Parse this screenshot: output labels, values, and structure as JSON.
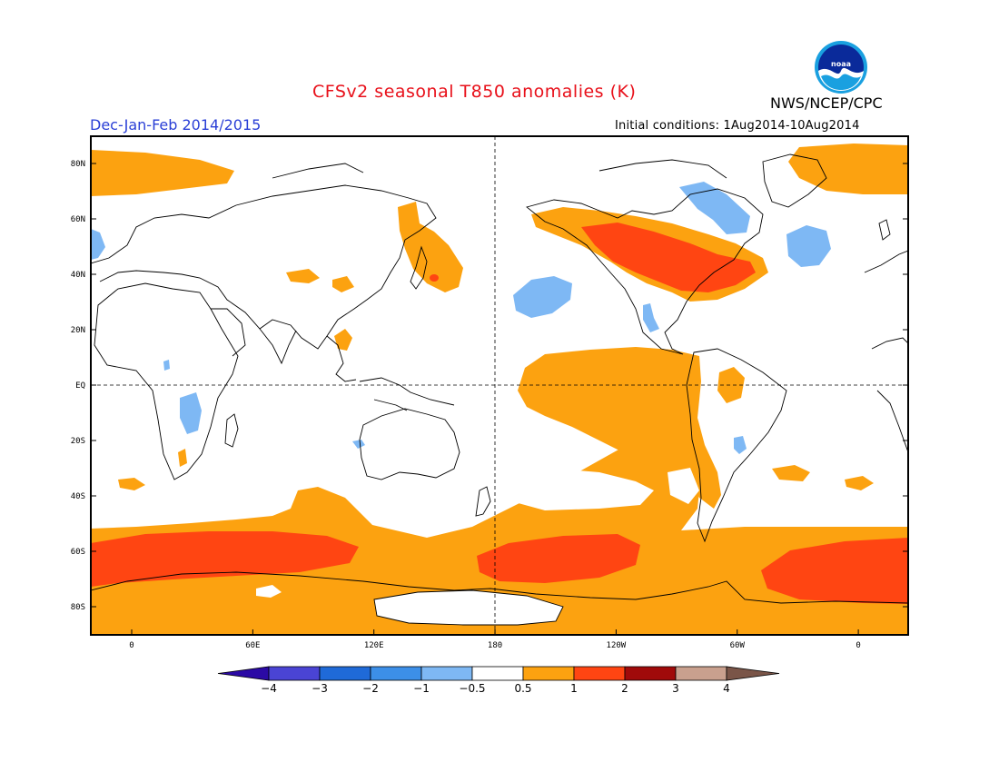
{
  "header": {
    "title": "CFSv2 seasonal T850 anomalies (K)",
    "season": "Dec-Jan-Feb 2014/2015",
    "organization": "NWS/NCEP/CPC",
    "initial_conditions": "Initial conditions: 1Aug2014-10Aug2014",
    "logo_text": "noaa"
  },
  "map": {
    "projection": "equirectangular",
    "lat_ticks": [
      "80N",
      "60N",
      "40N",
      "20N",
      "EQ",
      "20S",
      "40S",
      "60S",
      "80S"
    ],
    "lon_ticks": [
      "0",
      "60E",
      "120E",
      "180",
      "120W",
      "60W",
      "0"
    ],
    "reference_lines": [
      "equator",
      "dateline"
    ]
  },
  "colorbar": {
    "ticks": [
      "-4",
      "-3",
      "-2",
      "-1",
      "-0.5",
      "0.5",
      "1",
      "2",
      "3",
      "4"
    ],
    "colors": [
      "#2b0aa5",
      "#4a44d4",
      "#1f6ad8",
      "#3c8fe8",
      "#7eb8f4",
      "#ffffff",
      "#fca210",
      "#ff4512",
      "#a00a0a",
      "#c9a08e",
      "#7a5548"
    ]
  }
}
